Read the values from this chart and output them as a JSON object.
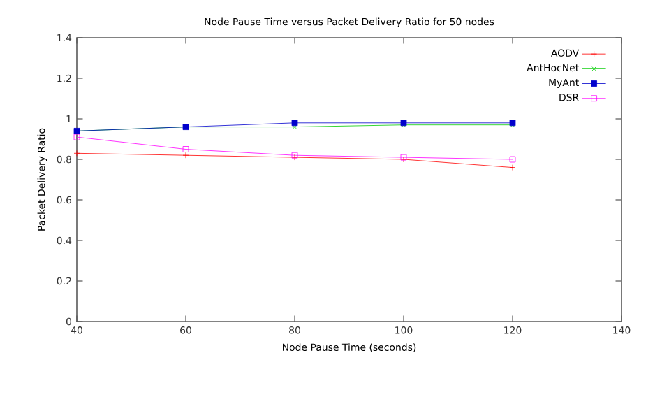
{
  "chart_data": {
    "type": "line",
    "title": "Node Pause Time versus Packet Delivery Ratio for 50 nodes",
    "xlabel": "Node Pause Time (seconds)",
    "ylabel": "Packet Delivery Ratio",
    "x": [
      40,
      60,
      80,
      100,
      120
    ],
    "series": [
      {
        "name": "AODV",
        "color": "#ff0000",
        "marker": "plus",
        "values": [
          0.83,
          0.82,
          0.81,
          0.8,
          0.76
        ]
      },
      {
        "name": "AntHocNet",
        "color": "#00cc00",
        "marker": "cross",
        "values": [
          0.94,
          0.96,
          0.96,
          0.97,
          0.97
        ]
      },
      {
        "name": "MyAnt",
        "color": "#0000cc",
        "marker": "square*",
        "values": [
          0.94,
          0.96,
          0.98,
          0.98,
          0.98
        ]
      },
      {
        "name": "DSR",
        "color": "#ff00ff",
        "marker": "square",
        "values": [
          0.91,
          0.85,
          0.82,
          0.81,
          0.8
        ]
      }
    ],
    "xlim": [
      40,
      140
    ],
    "xticks": [
      40,
      60,
      80,
      100,
      120,
      140
    ],
    "ylim": [
      0,
      1.4
    ],
    "yticks": [
      0,
      0.2,
      0.4,
      0.6,
      0.8,
      1,
      1.2,
      1.4
    ],
    "legend": "top right",
    "line_style": "solid",
    "grid": false
  }
}
